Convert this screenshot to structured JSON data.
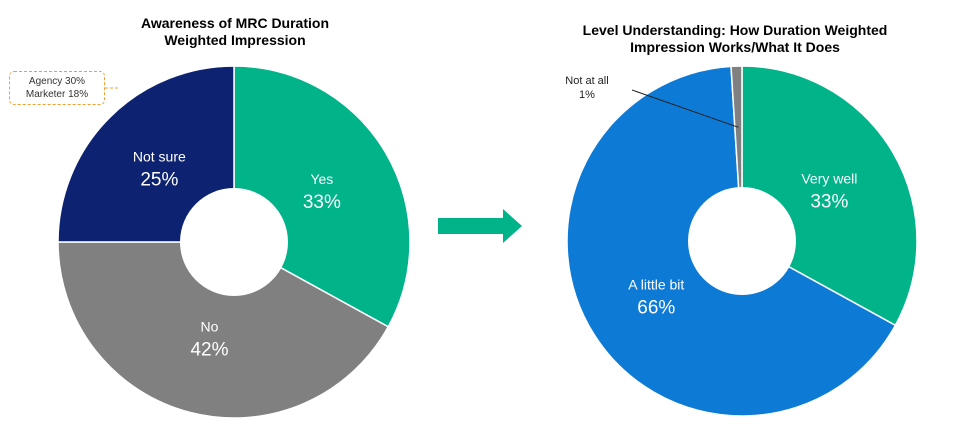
{
  "chart_data": [
    {
      "type": "pie",
      "title": "Awareness of MRC Duration\nWeighted Impression",
      "slices": [
        {
          "label": "Yes",
          "value": 33,
          "color": "#00b389"
        },
        {
          "label": "No",
          "value": 42,
          "color": "#808080"
        },
        {
          "label": "Not sure",
          "value": 25,
          "color": "#0d2270"
        }
      ],
      "annotation": {
        "lines": [
          "Agency 30%",
          "Marketer 18%"
        ],
        "applies_to": "Not sure"
      }
    },
    {
      "type": "pie",
      "title": "Level Understanding: How Duration Weighted\nImpression Works/What It Does",
      "slices": [
        {
          "label": "Very well",
          "value": 33,
          "color": "#00b389"
        },
        {
          "label": "A little bit",
          "value": 66,
          "color": "#0d7ad6"
        },
        {
          "label": "Not at all",
          "value": 1,
          "color": "#808080"
        }
      ]
    }
  ],
  "arrow_color": "#00b389"
}
